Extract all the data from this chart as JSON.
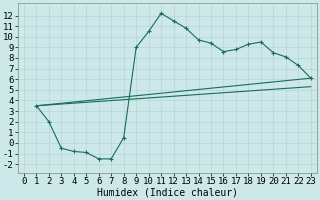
{
  "title": "",
  "xlabel": "Humidex (Indice chaleur)",
  "bg_color": "#cce8e8",
  "line_color": "#1a6b5a",
  "grid_color": "#b8d4d4",
  "xlim": [
    -0.5,
    23.5
  ],
  "ylim": [
    -2.8,
    13.2
  ],
  "xticks": [
    0,
    1,
    2,
    3,
    4,
    5,
    6,
    7,
    8,
    9,
    10,
    11,
    12,
    13,
    14,
    15,
    16,
    17,
    18,
    19,
    20,
    21,
    22,
    23
  ],
  "yticks": [
    -2,
    -1,
    0,
    1,
    2,
    3,
    4,
    5,
    6,
    7,
    8,
    9,
    10,
    11,
    12
  ],
  "line1_x": [
    1,
    2,
    3,
    4,
    5,
    6,
    7,
    8,
    9,
    10,
    11,
    12,
    13,
    14,
    15,
    16,
    17,
    18,
    19,
    20,
    21,
    22,
    23
  ],
  "line1_y": [
    3.5,
    2.0,
    -0.5,
    -0.8,
    -0.9,
    -1.5,
    -1.5,
    0.5,
    9.0,
    10.5,
    12.2,
    11.5,
    10.8,
    9.7,
    9.4,
    8.6,
    8.8,
    9.3,
    9.5,
    8.5,
    8.1,
    7.3,
    6.1
  ],
  "line2_x": [
    1,
    23
  ],
  "line2_y": [
    3.5,
    6.1
  ],
  "line3_x": [
    1,
    23
  ],
  "line3_y": [
    3.5,
    5.3
  ],
  "font_family": "monospace",
  "font_size": 6.5
}
